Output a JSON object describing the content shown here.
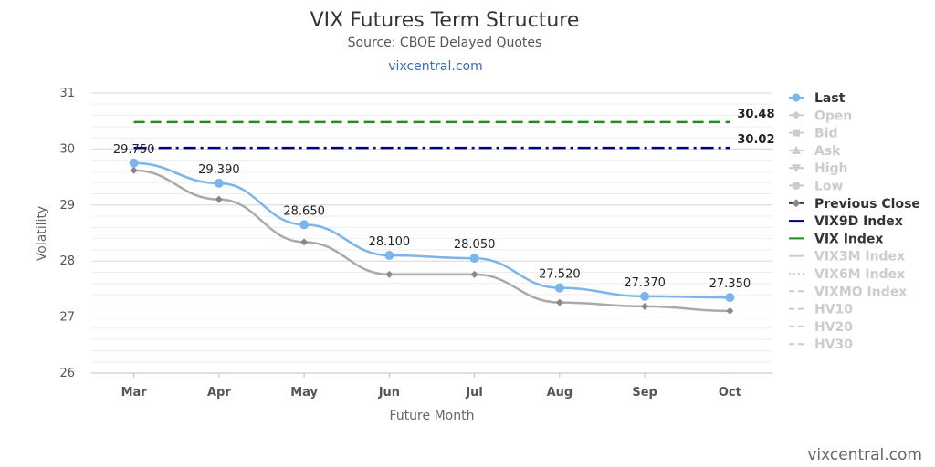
{
  "page": {
    "credit": "vixcentral.com"
  },
  "chart_data": {
    "type": "line",
    "title": "VIX Futures Term Structure",
    "subtitle": "Source: CBOE Delayed Quotes",
    "link": "vixcentral.com",
    "xlabel": "Future Month",
    "ylabel": "Volatility",
    "categories": [
      "Mar",
      "Apr",
      "May",
      "Jun",
      "Jul",
      "Aug",
      "Sep",
      "Oct"
    ],
    "ylim": [
      26,
      31
    ],
    "yticks": [
      26,
      27,
      28,
      29,
      30,
      31
    ],
    "grid": true,
    "legend_position": "right",
    "series": [
      {
        "name": "Last",
        "values": [
          29.75,
          29.39,
          28.65,
          28.1,
          28.05,
          27.52,
          27.37,
          27.35
        ],
        "labels": [
          "29.750",
          "29.390",
          "28.650",
          "28.100",
          "28.050",
          "27.520",
          "27.370",
          "27.350"
        ],
        "color": "#7cb5ec"
      },
      {
        "name": "Previous Close",
        "values": [
          29.62,
          29.1,
          28.34,
          27.76,
          27.76,
          27.26,
          27.19,
          27.11
        ],
        "color": "#aaaaaa"
      }
    ],
    "reference_lines": [
      {
        "name": "VIX Index",
        "value": 30.48,
        "label": "30.48",
        "color": "#228b22",
        "dash": "dash"
      },
      {
        "name": "VIX9D Index",
        "value": 30.02,
        "label": "30.02",
        "color": "#000080",
        "dash": "dashdot"
      }
    ],
    "legend": [
      {
        "name": "Last",
        "color": "#7cb5ec",
        "active": true,
        "symbol": "circle-line"
      },
      {
        "name": "Open",
        "color": "#cccccc",
        "active": false,
        "symbol": "diamond-line"
      },
      {
        "name": "Bid",
        "color": "#cccccc",
        "active": false,
        "symbol": "square-line"
      },
      {
        "name": "Ask",
        "color": "#cccccc",
        "active": false,
        "symbol": "triangle-line"
      },
      {
        "name": "High",
        "color": "#cccccc",
        "active": false,
        "symbol": "triangle-down-line"
      },
      {
        "name": "Low",
        "color": "#cccccc",
        "active": false,
        "symbol": "circle-line"
      },
      {
        "name": "Previous Close",
        "color": "#333333",
        "active": true,
        "symbol": "diamond-line"
      },
      {
        "name": "VIX9D Index",
        "color": "#000080",
        "active": true,
        "symbol": "line"
      },
      {
        "name": "VIX Index",
        "color": "#228b22",
        "active": true,
        "symbol": "line"
      },
      {
        "name": "VIX3M Index",
        "color": "#cccccc",
        "active": false,
        "symbol": "line"
      },
      {
        "name": "VIX6M Index",
        "color": "#cccccc",
        "active": false,
        "symbol": "dotted"
      },
      {
        "name": "VIXMO Index",
        "color": "#cccccc",
        "active": false,
        "symbol": "dashed"
      },
      {
        "name": "HV10",
        "color": "#cccccc",
        "active": false,
        "symbol": "dashed"
      },
      {
        "name": "HV20",
        "color": "#cccccc",
        "active": false,
        "symbol": "dashed"
      },
      {
        "name": "HV30",
        "color": "#cccccc",
        "active": false,
        "symbol": "dashed"
      }
    ]
  }
}
